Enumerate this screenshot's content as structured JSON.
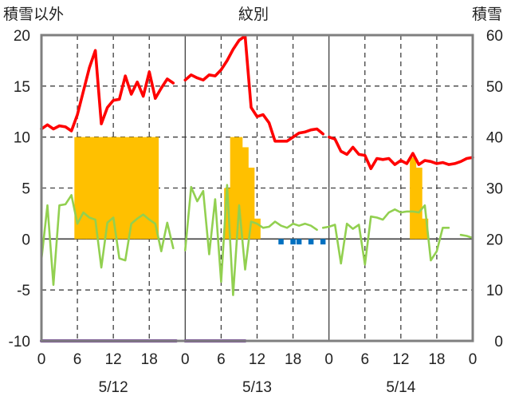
{
  "chart_data": {
    "type": "line",
    "title": "紋別",
    "left_axis_label": "積雪以外",
    "right_axis_label": "積雪",
    "left_ylim": [
      -10,
      20
    ],
    "left_yticks": [
      "20",
      "15",
      "10",
      "5",
      "0",
      "-5",
      "-10"
    ],
    "right_ylim": [
      0,
      60
    ],
    "right_yticks": [
      "60",
      "50",
      "40",
      "30",
      "20",
      "10",
      "0"
    ],
    "x_hour_ticks": [
      "0",
      "6",
      "12",
      "18",
      "0",
      "6",
      "12",
      "18",
      "0",
      "6",
      "12",
      "18",
      "0"
    ],
    "dates": [
      "5/12",
      "5/13",
      "5/14"
    ],
    "grid": true,
    "colors": {
      "temperature": "#ff0000",
      "precip": "#ffc000",
      "wind": "#92d050",
      "snow_bar": "#0070c0",
      "duration": "#7030a0",
      "frame": "#7f7f7f"
    },
    "series": [
      {
        "key": "red_line",
        "segments": [
          {
            "x": [
              0,
              1,
              2,
              3,
              4,
              5,
              6,
              7,
              8,
              9,
              10,
              11,
              12,
              13,
              14,
              15,
              16,
              17,
              18,
              19,
              20,
              21,
              22,
              23
            ],
            "y": [
              10.8,
              11.2,
              10.8,
              11.1,
              11.0,
              10.6,
              12.2,
              14.5,
              16.8,
              18.5,
              11.3,
              12.9,
              13.6,
              13.7,
              16.0,
              14.2,
              15.4,
              14.0,
              16.4,
              13.8,
              14.8,
              15.7,
              15.3,
              null
            ]
          },
          {
            "x": [
              24,
              25,
              26,
              27,
              28,
              29,
              30,
              31,
              32,
              33,
              34,
              35,
              36,
              37,
              38,
              39,
              40,
              41,
              42,
              43,
              44,
              45,
              46,
              47
            ],
            "y": [
              15.6,
              16.1,
              15.8,
              15.6,
              16.1,
              16.0,
              16.6,
              17.5,
              18.6,
              19.5,
              19.9,
              12.9,
              12.0,
              12.2,
              11.4,
              9.6,
              9.6,
              9.6,
              10.0,
              10.4,
              10.5,
              10.7,
              10.8,
              10.3
            ]
          },
          {
            "x": [
              48,
              49,
              50,
              51,
              52,
              53,
              54,
              55,
              56,
              57,
              58,
              59,
              60,
              61,
              62,
              63,
              64,
              65,
              66,
              67,
              68,
              69,
              70,
              71,
              72
            ],
            "y": [
              10.0,
              9.8,
              8.6,
              8.3,
              9.0,
              8.3,
              8.2,
              6.9,
              7.9,
              7.8,
              7.9,
              7.3,
              7.7,
              7.4,
              8.4,
              7.3,
              7.7,
              7.6,
              7.4,
              7.5,
              7.3,
              7.4,
              7.6,
              7.9,
              8.0
            ]
          }
        ]
      },
      {
        "key": "orange_bars",
        "bars": [
          {
            "x": 6,
            "y": 10
          },
          {
            "x": 7,
            "y": 10
          },
          {
            "x": 8,
            "y": 10
          },
          {
            "x": 9,
            "y": 10
          },
          {
            "x": 10,
            "y": 10
          },
          {
            "x": 11,
            "y": 10
          },
          {
            "x": 12,
            "y": 10
          },
          {
            "x": 13,
            "y": 10
          },
          {
            "x": 14,
            "y": 10
          },
          {
            "x": 15,
            "y": 10
          },
          {
            "x": 16,
            "y": 10
          },
          {
            "x": 17,
            "y": 10
          },
          {
            "x": 18,
            "y": 10
          },
          {
            "x": 19,
            "y": 10
          },
          {
            "x": 31,
            "y": 5
          },
          {
            "x": 32,
            "y": 10
          },
          {
            "x": 33,
            "y": 10
          },
          {
            "x": 34,
            "y": 9
          },
          {
            "x": 35,
            "y": 7
          },
          {
            "x": 36,
            "y": 2
          },
          {
            "x": 62,
            "y": 8
          },
          {
            "x": 63,
            "y": 7
          },
          {
            "x": 64,
            "y": 2
          }
        ]
      },
      {
        "key": "green_line",
        "segments": [
          {
            "x": [
              0,
              1,
              2,
              3,
              4,
              5,
              6,
              7,
              8,
              9,
              10,
              11,
              12,
              13,
              14,
              15,
              16,
              17,
              18,
              19,
              20,
              21,
              22,
              23
            ],
            "y": [
              -2.0,
              3.3,
              -4.5,
              3.3,
              3.4,
              4.3,
              1.5,
              2.6,
              2.1,
              1.9,
              -2.8,
              1.6,
              2.1,
              -1.9,
              -2.1,
              1.5,
              2.0,
              2.4,
              1.9,
              1.5,
              -1.2,
              1.6,
              -0.9,
              null
            ]
          },
          {
            "x": [
              24,
              25,
              26,
              27,
              28,
              29,
              30,
              31,
              32,
              33,
              34,
              35,
              36,
              37,
              38,
              39,
              40,
              41,
              42,
              43,
              44,
              45,
              46
            ],
            "y": [
              -1.1,
              5.1,
              3.7,
              4.7,
              -1.5,
              3.9,
              -4.2,
              5.3,
              -5.5,
              3.3,
              -3.0,
              1.7,
              1.5,
              1.1,
              1.2,
              1.7,
              1.3,
              1.1,
              1.5,
              1.3,
              1.5,
              1.3,
              0.9
            ]
          },
          {
            "x": [
              47,
              48,
              49,
              50,
              51,
              52,
              53,
              54,
              55,
              56,
              57,
              58,
              59,
              60,
              61,
              62,
              63,
              64,
              65,
              66,
              67,
              68,
              69,
              70,
              71,
              72
            ],
            "y": [
              1.1,
              1.2,
              1.4,
              -2.4,
              1.5,
              1.0,
              1.4,
              -2.5,
              2.2,
              2.1,
              1.9,
              2.6,
              2.9,
              2.6,
              2.7,
              2.7,
              2.6,
              3.3,
              -2.1,
              -1.2,
              1.1,
              1.1,
              null,
              0.4,
              0.3,
              0.1
            ]
          }
        ]
      },
      {
        "key": "blue_bars",
        "bars": [
          {
            "x": 40,
            "y": -0.3
          },
          {
            "x": 42,
            "y": -0.3
          },
          {
            "x": 43,
            "y": -0.3
          },
          {
            "x": 45,
            "y": -0.3
          },
          {
            "x": 47,
            "y": -0.3
          }
        ]
      },
      {
        "key": "purple_line",
        "segments": [
          {
            "x": [
              0,
              22.5
            ],
            "y": [
              -10,
              -10
            ]
          },
          {
            "x": [
              24,
              34
            ],
            "y": [
              -10,
              -10
            ]
          }
        ]
      }
    ]
  }
}
